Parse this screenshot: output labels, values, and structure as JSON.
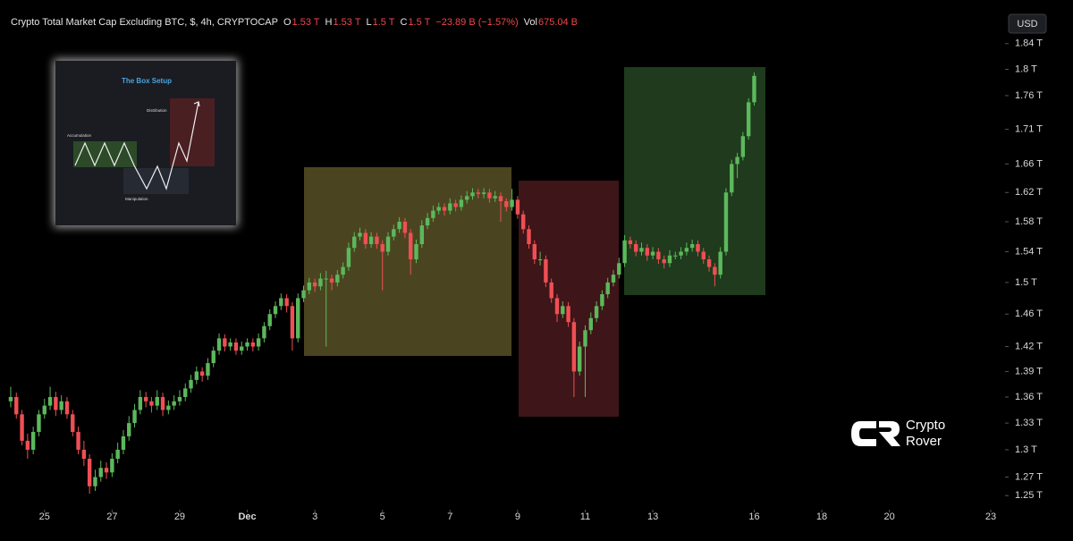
{
  "chart_data": {
    "type": "candlestick",
    "title": "Crypto Total Market Cap Excluding BTC, $, 4h, CRYPTOCAP",
    "legend_values": [
      {
        "label": "O",
        "value": "1.53 T"
      },
      {
        "label": "H",
        "value": "1.53 T"
      },
      {
        "label": "L",
        "value": "1.5 T"
      },
      {
        "label": "C",
        "value": "1.5 T"
      }
    ],
    "change": "−23.89 B (−1.57%)",
    "volume_label": "Vol",
    "volume": "675.04 B",
    "currency": "USD",
    "inset": {
      "title": "The Box Setup",
      "labels": [
        "Accumulation",
        "Distribution",
        "Manipulation"
      ]
    },
    "watermark": [
      "Crypto",
      "Rover"
    ],
    "up_color": "#5cb85c",
    "down_color": "#ef4f54",
    "log_scale": true,
    "grid": false,
    "ylim": [
      1.235,
      1.91
    ],
    "yticks": [
      {
        "value": 1.84,
        "label": "1.84 T"
      },
      {
        "value": 1.8,
        "label": "1.8 T"
      },
      {
        "value": 1.76,
        "label": "1.76 T"
      },
      {
        "value": 1.71,
        "label": "1.71 T"
      },
      {
        "value": 1.66,
        "label": "1.66 T"
      },
      {
        "value": 1.62,
        "label": "1.62 T"
      },
      {
        "value": 1.58,
        "label": "1.58 T"
      },
      {
        "value": 1.54,
        "label": "1.54 T"
      },
      {
        "value": 1.5,
        "label": "1.5 T"
      },
      {
        "value": 1.46,
        "label": "1.46 T"
      },
      {
        "value": 1.42,
        "label": "1.42 T"
      },
      {
        "value": 1.39,
        "label": "1.39 T"
      },
      {
        "value": 1.36,
        "label": "1.36 T"
      },
      {
        "value": 1.33,
        "label": "1.33 T"
      },
      {
        "value": 1.3,
        "label": "1.3 T"
      },
      {
        "value": 1.27,
        "label": "1.27 T"
      },
      {
        "value": 1.25,
        "label": "1.25 T"
      }
    ],
    "xlim": [
      -1.9,
      175.9
    ],
    "xticks": [
      {
        "value": 6,
        "label": "25"
      },
      {
        "value": 18,
        "label": "27"
      },
      {
        "value": 30,
        "label": "29"
      },
      {
        "value": 42,
        "label": "Dec"
      },
      {
        "value": 54,
        "label": "3"
      },
      {
        "value": 66,
        "label": "5"
      },
      {
        "value": 78,
        "label": "7"
      },
      {
        "value": 90,
        "label": "9"
      },
      {
        "value": 102,
        "label": "11"
      },
      {
        "value": 114,
        "label": "13"
      },
      {
        "value": 132,
        "label": "16"
      },
      {
        "value": 144,
        "label": "18"
      },
      {
        "value": 156,
        "label": "20"
      },
      {
        "value": 174,
        "label": "23"
      }
    ],
    "candles": [
      [
        1.355,
        1.372,
        1.348,
        1.36
      ],
      [
        1.36,
        1.365,
        1.335,
        1.34
      ],
      [
        1.34,
        1.345,
        1.305,
        1.31
      ],
      [
        1.31,
        1.318,
        1.29,
        1.3
      ],
      [
        1.3,
        1.326,
        1.295,
        1.32
      ],
      [
        1.32,
        1.345,
        1.315,
        1.34
      ],
      [
        1.34,
        1.358,
        1.335,
        1.35
      ],
      [
        1.35,
        1.372,
        1.345,
        1.36
      ],
      [
        1.36,
        1.366,
        1.338,
        1.345
      ],
      [
        1.345,
        1.362,
        1.34,
        1.355
      ],
      [
        1.355,
        1.36,
        1.335,
        1.34
      ],
      [
        1.34,
        1.345,
        1.315,
        1.32
      ],
      [
        1.32,
        1.326,
        1.295,
        1.3
      ],
      [
        1.3,
        1.31,
        1.282,
        1.29
      ],
      [
        1.29,
        1.295,
        1.252,
        1.26
      ],
      [
        1.26,
        1.278,
        1.255,
        1.27
      ],
      [
        1.27,
        1.288,
        1.265,
        1.28
      ],
      [
        1.28,
        1.286,
        1.268,
        1.275
      ],
      [
        1.275,
        1.296,
        1.27,
        1.29
      ],
      [
        1.29,
        1.308,
        1.285,
        1.3
      ],
      [
        1.3,
        1.322,
        1.295,
        1.315
      ],
      [
        1.315,
        1.338,
        1.31,
        1.33
      ],
      [
        1.33,
        1.352,
        1.325,
        1.345
      ],
      [
        1.345,
        1.368,
        1.34,
        1.36
      ],
      [
        1.36,
        1.366,
        1.348,
        1.355
      ],
      [
        1.355,
        1.36,
        1.342,
        1.35
      ],
      [
        1.35,
        1.368,
        1.345,
        1.36
      ],
      [
        1.36,
        1.365,
        1.338,
        1.345
      ],
      [
        1.345,
        1.356,
        1.34,
        1.35
      ],
      [
        1.35,
        1.362,
        1.345,
        1.355
      ],
      [
        1.355,
        1.368,
        1.35,
        1.36
      ],
      [
        1.36,
        1.376,
        1.355,
        1.37
      ],
      [
        1.37,
        1.386,
        1.365,
        1.38
      ],
      [
        1.38,
        1.396,
        1.375,
        1.39
      ],
      [
        1.39,
        1.395,
        1.378,
        1.385
      ],
      [
        1.385,
        1.406,
        1.38,
        1.4
      ],
      [
        1.4,
        1.42,
        1.395,
        1.415
      ],
      [
        1.415,
        1.436,
        1.41,
        1.43
      ],
      [
        1.43,
        1.435,
        1.414,
        1.42
      ],
      [
        1.42,
        1.43,
        1.415,
        1.425
      ],
      [
        1.425,
        1.43,
        1.41,
        1.415
      ],
      [
        1.415,
        1.426,
        1.41,
        1.42
      ],
      [
        1.42,
        1.43,
        1.415,
        1.425
      ],
      [
        1.425,
        1.43,
        1.414,
        1.42
      ],
      [
        1.42,
        1.436,
        1.415,
        1.43
      ],
      [
        1.43,
        1.45,
        1.425,
        1.445
      ],
      [
        1.445,
        1.466,
        1.44,
        1.46
      ],
      [
        1.46,
        1.476,
        1.455,
        1.47
      ],
      [
        1.47,
        1.486,
        1.465,
        1.48
      ],
      [
        1.48,
        1.485,
        1.462,
        1.47
      ],
      [
        1.47,
        1.475,
        1.415,
        1.43
      ],
      [
        1.43,
        1.486,
        1.425,
        1.48
      ],
      [
        1.48,
        1.496,
        1.475,
        1.49
      ],
      [
        1.49,
        1.506,
        1.485,
        1.5
      ],
      [
        1.5,
        1.505,
        1.488,
        1.495
      ],
      [
        1.495,
        1.512,
        1.49,
        1.505
      ],
      [
        1.505,
        1.515,
        1.42,
        1.505
      ],
      [
        1.505,
        1.51,
        1.49,
        1.5
      ],
      [
        1.5,
        1.516,
        1.495,
        1.51
      ],
      [
        1.51,
        1.526,
        1.505,
        1.52
      ],
      [
        1.52,
        1.552,
        1.515,
        1.545
      ],
      [
        1.545,
        1.566,
        1.54,
        1.56
      ],
      [
        1.56,
        1.572,
        1.555,
        1.565
      ],
      [
        1.565,
        1.57,
        1.544,
        1.55
      ],
      [
        1.55,
        1.566,
        1.545,
        1.56
      ],
      [
        1.56,
        1.565,
        1.544,
        1.55
      ],
      [
        1.55,
        1.555,
        1.49,
        1.54
      ],
      [
        1.54,
        1.566,
        1.535,
        1.56
      ],
      [
        1.56,
        1.576,
        1.555,
        1.57
      ],
      [
        1.57,
        1.586,
        1.565,
        1.58
      ],
      [
        1.58,
        1.585,
        1.558,
        1.565
      ],
      [
        1.565,
        1.57,
        1.51,
        1.53
      ],
      [
        1.53,
        1.556,
        1.525,
        1.55
      ],
      [
        1.55,
        1.582,
        1.545,
        1.575
      ],
      [
        1.575,
        1.592,
        1.57,
        1.585
      ],
      [
        1.585,
        1.602,
        1.58,
        1.595
      ],
      [
        1.595,
        1.606,
        1.59,
        1.6
      ],
      [
        1.6,
        1.605,
        1.588,
        1.595
      ],
      [
        1.595,
        1.612,
        1.59,
        1.605
      ],
      [
        1.605,
        1.61,
        1.594,
        1.6
      ],
      [
        1.6,
        1.616,
        1.595,
        1.61
      ],
      [
        1.61,
        1.622,
        1.605,
        1.615
      ],
      [
        1.615,
        1.626,
        1.61,
        1.62
      ],
      [
        1.62,
        1.625,
        1.612,
        1.618
      ],
      [
        1.618,
        1.626,
        1.612,
        1.62
      ],
      [
        1.62,
        1.625,
        1.606,
        1.612
      ],
      [
        1.612,
        1.622,
        1.607,
        1.615
      ],
      [
        1.615,
        1.62,
        1.58,
        1.608
      ],
      [
        1.608,
        1.612,
        1.594,
        1.6
      ],
      [
        1.6,
        1.625,
        1.595,
        1.61
      ],
      [
        1.61,
        1.615,
        1.584,
        1.59
      ],
      [
        1.59,
        1.595,
        1.564,
        1.57
      ],
      [
        1.57,
        1.575,
        1.544,
        1.55
      ],
      [
        1.55,
        1.555,
        1.524,
        1.53
      ],
      [
        1.53,
        1.54,
        1.522,
        1.53
      ],
      [
        1.53,
        1.535,
        1.494,
        1.5
      ],
      [
        1.5,
        1.505,
        1.474,
        1.48
      ],
      [
        1.48,
        1.485,
        1.45,
        1.46
      ],
      [
        1.46,
        1.476,
        1.455,
        1.47
      ],
      [
        1.47,
        1.475,
        1.444,
        1.45
      ],
      [
        1.45,
        1.455,
        1.36,
        1.39
      ],
      [
        1.39,
        1.426,
        1.385,
        1.42
      ],
      [
        1.42,
        1.446,
        1.36,
        1.44
      ],
      [
        1.44,
        1.462,
        1.435,
        1.455
      ],
      [
        1.455,
        1.476,
        1.45,
        1.47
      ],
      [
        1.47,
        1.49,
        1.465,
        1.485
      ],
      [
        1.485,
        1.506,
        1.48,
        1.5
      ],
      [
        1.5,
        1.516,
        1.495,
        1.51
      ],
      [
        1.51,
        1.532,
        1.505,
        1.525
      ],
      [
        1.525,
        1.562,
        1.52,
        1.555
      ],
      [
        1.555,
        1.56,
        1.544,
        1.55
      ],
      [
        1.55,
        1.555,
        1.534,
        1.54
      ],
      [
        1.54,
        1.552,
        1.535,
        1.545
      ],
      [
        1.545,
        1.55,
        1.528,
        1.535
      ],
      [
        1.535,
        1.546,
        1.53,
        1.54
      ],
      [
        1.54,
        1.545,
        1.524,
        1.53
      ],
      [
        1.53,
        1.535,
        1.518,
        1.525
      ],
      [
        1.525,
        1.542,
        1.52,
        1.535
      ],
      [
        1.535,
        1.54,
        1.53,
        1.535
      ],
      [
        1.535,
        1.546,
        1.53,
        1.54
      ],
      [
        1.54,
        1.552,
        1.535,
        1.545
      ],
      [
        1.545,
        1.556,
        1.54,
        1.55
      ],
      [
        1.55,
        1.555,
        1.534,
        1.54
      ],
      [
        1.54,
        1.545,
        1.524,
        1.53
      ],
      [
        1.53,
        1.535,
        1.514,
        1.52
      ],
      [
        1.52,
        1.525,
        1.495,
        1.51
      ],
      [
        1.51,
        1.546,
        1.505,
        1.54
      ],
      [
        1.54,
        1.626,
        1.535,
        1.62
      ],
      [
        1.62,
        1.666,
        1.615,
        1.66
      ],
      [
        1.66,
        1.676,
        1.64,
        1.67
      ],
      [
        1.67,
        1.706,
        1.665,
        1.7
      ],
      [
        1.7,
        1.756,
        1.695,
        1.75
      ],
      [
        1.75,
        1.795,
        1.745,
        1.79
      ]
    ]
  }
}
